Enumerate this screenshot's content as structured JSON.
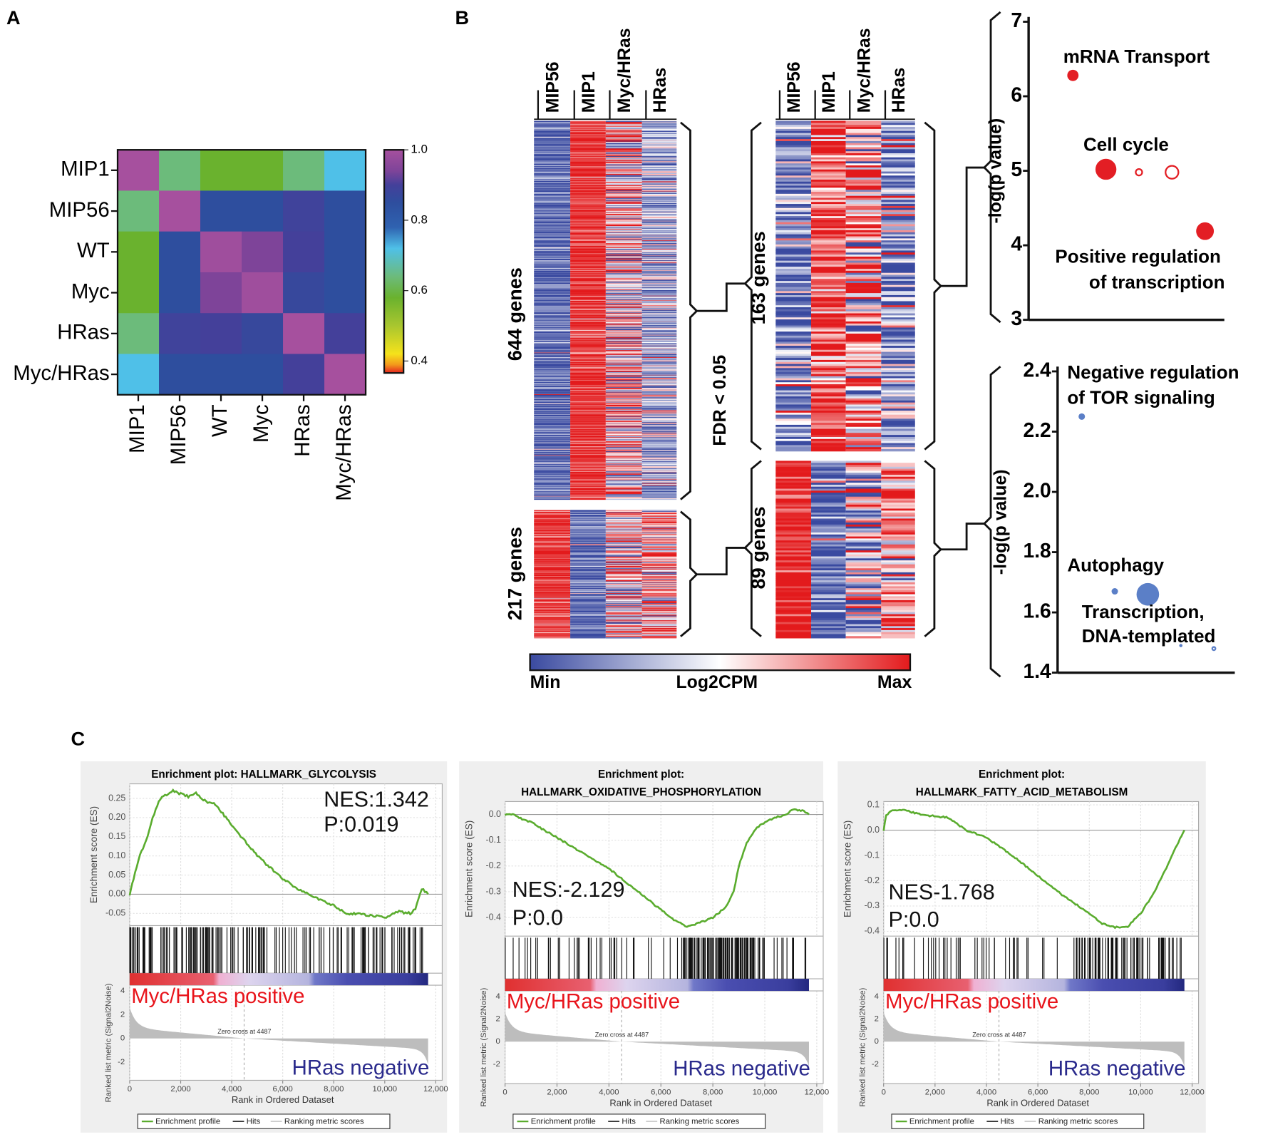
{
  "panel_labels": {
    "a": "A",
    "b": "B",
    "c": "C"
  },
  "chart_data": [
    {
      "id": "A",
      "type": "heatmap",
      "rows": [
        "MIP1",
        "MIP56",
        "WT",
        "Myc",
        "HRas",
        "Myc/HRas"
      ],
      "cols": [
        "MIP1",
        "MIP56",
        "WT",
        "Myc",
        "HRas",
        "Myc/HRas"
      ],
      "values": [
        [
          1.0,
          0.64,
          0.58,
          0.58,
          0.64,
          0.72
        ],
        [
          0.64,
          1.0,
          0.85,
          0.85,
          0.89,
          0.85
        ],
        [
          0.58,
          0.85,
          0.99,
          0.94,
          0.9,
          0.85
        ],
        [
          0.58,
          0.85,
          0.94,
          0.99,
          0.87,
          0.85
        ],
        [
          0.64,
          0.89,
          0.9,
          0.87,
          1.0,
          0.9
        ],
        [
          0.72,
          0.85,
          0.85,
          0.85,
          0.9,
          1.0
        ]
      ],
      "colorbar": {
        "range": [
          0.366,
          1.0
        ],
        "ticks": [
          "1.0",
          "0.8",
          "0.6",
          "0.4"
        ]
      }
    },
    {
      "id": "B-heatmap",
      "type": "heatmap",
      "columns": [
        "MIP56",
        "MIP1",
        "Myc/HRas",
        "HRas"
      ],
      "blocks": [
        {
          "label": "644 genes",
          "genes": 644,
          "side": "left",
          "column_means": [
            -0.85,
            0.9,
            0.1,
            -0.45
          ],
          "spread": [
            0.35,
            0.25,
            0.8,
            0.5
          ]
        },
        {
          "label": "217 genes",
          "genes": 217,
          "side": "left",
          "column_means": [
            0.9,
            -0.85,
            0.15,
            0.3
          ],
          "spread": [
            0.25,
            0.35,
            0.7,
            0.7
          ]
        },
        {
          "label": "163 genes",
          "genes": 163,
          "side": "right",
          "column_means": [
            -0.6,
            0.8,
            0.45,
            -0.55
          ],
          "spread": [
            0.5,
            0.45,
            0.7,
            0.6
          ]
        },
        {
          "label": "89 genes",
          "genes": 89,
          "side": "right",
          "column_means": [
            0.9,
            -0.8,
            -0.1,
            0.5
          ],
          "spread": [
            0.25,
            0.35,
            0.7,
            0.6
          ]
        }
      ],
      "fdr_label": "FDR < 0.05",
      "colorbar": {
        "min": "Min",
        "label": "Log2CPM",
        "max": "Max"
      },
      "colors": {
        "min": "#3a4aa0",
        "mid": "#ffffff",
        "max": "#e31a1c"
      }
    },
    {
      "id": "B-dot-up",
      "type": "scatter",
      "ylabel": "-log(p value)",
      "ylim": [
        3,
        7
      ],
      "yticks": [
        "7",
        "6",
        "5",
        "4",
        "3"
      ],
      "color": "#e31e24",
      "points": [
        {
          "x": 1,
          "y": 6.28,
          "size": 3,
          "filled": true
        },
        {
          "x": 2,
          "y": 5.02,
          "size": 6,
          "filled": true
        },
        {
          "x": 3,
          "y": 4.98,
          "size": 2,
          "filled": false
        },
        {
          "x": 4,
          "y": 4.98,
          "size": 4,
          "filled": false
        },
        {
          "x": 5,
          "y": 4.19,
          "size": 5,
          "filled": true
        }
      ],
      "annotations": [
        "mRNA Transport",
        "Cell cycle",
        "Positive regulation",
        "of transcription"
      ]
    },
    {
      "id": "B-dot-down",
      "type": "scatter",
      "ylabel": "-log(p value)",
      "ylim": [
        1.4,
        2.4
      ],
      "yticks": [
        "2.4",
        "2.2",
        "2.0",
        "1.8",
        "1.6",
        "1.4"
      ],
      "color": "#5b7fc7",
      "points": [
        {
          "x": 1,
          "y": 2.25,
          "size": 1.5,
          "filled": true
        },
        {
          "x": 2,
          "y": 1.67,
          "size": 1.5,
          "filled": true
        },
        {
          "x": 3,
          "y": 1.66,
          "size": 6.5,
          "filled": true
        },
        {
          "x": 4,
          "y": 1.49,
          "size": 0.5,
          "filled": true
        },
        {
          "x": 5,
          "y": 1.48,
          "size": 1,
          "filled": false
        }
      ],
      "annotations": [
        "Negative regulation",
        "of TOR signaling",
        "Autophagy",
        "Transcription,",
        "DNA-templated"
      ]
    },
    {
      "id": "C1",
      "type": "line",
      "title": [
        "Enrichment plot: HALLMARK_GLYCOLYSIS"
      ],
      "nes": "NES:1.342",
      "p": "P:0.019",
      "ylabel": "Enrichment score (ES)",
      "ylabel2": "Ranked list metric (Signal2Noise)",
      "xlabel": "Rank in Ordered Dataset",
      "ylim": [
        -0.082,
        0.288
      ],
      "yticks": [
        "0.25",
        "0.20",
        "0.15",
        "0.10",
        "0.05",
        "0.00",
        "-0.05"
      ],
      "metric_ticks": [
        "4",
        "2",
        "0",
        "-2"
      ],
      "xticks": [
        "0",
        "2,000",
        "4,000",
        "6,000",
        "8,000",
        "10,000",
        "12,000"
      ],
      "zero_cross": "Zero cross at 4487",
      "zero_cross_rank": 4487,
      "n_genes": 11700,
      "positive_label": "Myc/HRas positive",
      "negative_label": "HRas negative",
      "legend": [
        "Enrichment profile",
        "Hits",
        "Ranking metric scores"
      ],
      "es_curve": [
        [
          0,
          0
        ],
        [
          150,
          0.04
        ],
        [
          400,
          0.1
        ],
        [
          700,
          0.15
        ],
        [
          900,
          0.2
        ],
        [
          1200,
          0.25
        ],
        [
          1700,
          0.27
        ],
        [
          2000,
          0.262
        ],
        [
          2300,
          0.255
        ],
        [
          2600,
          0.265
        ],
        [
          3000,
          0.24
        ],
        [
          3300,
          0.24
        ],
        [
          4000,
          0.18
        ],
        [
          5000,
          0.1
        ],
        [
          6000,
          0.04
        ],
        [
          6700,
          0.01
        ],
        [
          7000,
          0.0
        ],
        [
          8000,
          -0.03
        ],
        [
          8500,
          -0.05
        ],
        [
          9500,
          -0.055
        ],
        [
          10000,
          -0.062
        ],
        [
          10500,
          -0.045
        ],
        [
          11000,
          -0.05
        ],
        [
          11200,
          -0.04
        ],
        [
          11450,
          0.015
        ],
        [
          11700,
          0.0
        ]
      ],
      "hits_profile": [
        [
          0,
          3500,
          70
        ],
        [
          3500,
          7500,
          45
        ],
        [
          7500,
          11500,
          55
        ]
      ]
    },
    {
      "id": "C2",
      "type": "line",
      "title": [
        "Enrichment plot:",
        "HALLMARK_OXIDATIVE_PHOSPHORYLATION"
      ],
      "nes": "NES:-2.129",
      "p": "P:0.0",
      "ylabel": "Enrichment score (ES)",
      "ylabel2": "Ranked list metric (Signal2Noise)",
      "xlabel": "Rank in Ordered Dataset",
      "ylim": [
        -0.472,
        0.05
      ],
      "yticks": [
        "0.0",
        "-0.1",
        "-0.2",
        "-0.3",
        "-0.4"
      ],
      "metric_ticks": [
        "4",
        "2",
        "0",
        "-2"
      ],
      "xticks": [
        "0",
        "2,000",
        "4,000",
        "6,000",
        "8,000",
        "10,000",
        "12,000"
      ],
      "zero_cross": "Zero cross at 4487",
      "zero_cross_rank": 4487,
      "n_genes": 11700,
      "positive_label": "Myc/HRas positive",
      "negative_label": "HRas negative",
      "legend": [
        "Enrichment profile",
        "Hits",
        "Ranking metric scores"
      ],
      "es_curve": [
        [
          0,
          0
        ],
        [
          300,
          0.0
        ],
        [
          600,
          -0.015
        ],
        [
          1000,
          -0.03
        ],
        [
          2000,
          -0.09
        ],
        [
          3000,
          -0.15
        ],
        [
          4000,
          -0.21
        ],
        [
          5000,
          -0.29
        ],
        [
          6000,
          -0.37
        ],
        [
          6500,
          -0.41
        ],
        [
          7000,
          -0.435
        ],
        [
          7500,
          -0.42
        ],
        [
          8000,
          -0.4
        ],
        [
          8500,
          -0.36
        ],
        [
          8800,
          -0.3
        ],
        [
          9000,
          -0.2
        ],
        [
          9300,
          -0.11
        ],
        [
          9700,
          -0.05
        ],
        [
          10200,
          -0.02
        ],
        [
          10800,
          0.0
        ],
        [
          11100,
          0.02
        ],
        [
          11500,
          0.015
        ],
        [
          11700,
          0.0
        ]
      ],
      "hits_profile": [
        [
          0,
          6800,
          40
        ],
        [
          6800,
          9600,
          110
        ],
        [
          9600,
          11700,
          18
        ]
      ]
    },
    {
      "id": "C3",
      "type": "line",
      "title": [
        "Enrichment plot:",
        "HALLMARK_FATTY_ACID_METABOLISM"
      ],
      "nes": "NES-1.768",
      "p": "P:0.0",
      "ylabel": "Enrichment score (ES)",
      "ylabel2": "Ranked list metric (Signal2Noise)",
      "xlabel": "Rank in Ordered Dataset",
      "ylim": [
        -0.419,
        0.113
      ],
      "yticks": [
        "0.1",
        "0.0",
        "-0.1",
        "-0.2",
        "-0.3",
        "-0.4"
      ],
      "metric_ticks": [
        "4",
        "2",
        "0",
        "-2"
      ],
      "xticks": [
        "0",
        "2,000",
        "4,000",
        "6,000",
        "8,000",
        "10,000",
        "12,000"
      ],
      "zero_cross": "Zero cross at 4487",
      "zero_cross_rank": 4487,
      "n_genes": 11700,
      "positive_label": "Myc/HRas positive",
      "negative_label": "HRas negative",
      "legend": [
        "Enrichment profile",
        "Hits",
        "Ranking metric scores"
      ],
      "es_curve": [
        [
          0,
          0
        ],
        [
          100,
          0.06
        ],
        [
          400,
          0.08
        ],
        [
          800,
          0.08
        ],
        [
          1500,
          0.06
        ],
        [
          2500,
          0.05
        ],
        [
          3200,
          0.0
        ],
        [
          4000,
          -0.03
        ],
        [
          5000,
          -0.1
        ],
        [
          6000,
          -0.18
        ],
        [
          7000,
          -0.26
        ],
        [
          8000,
          -0.33
        ],
        [
          8500,
          -0.37
        ],
        [
          9000,
          -0.385
        ],
        [
          9500,
          -0.38
        ],
        [
          10000,
          -0.33
        ],
        [
          10500,
          -0.25
        ],
        [
          11000,
          -0.15
        ],
        [
          11300,
          -0.08
        ],
        [
          11700,
          0.0
        ]
      ],
      "hits_profile": [
        [
          0,
          7500,
          45
        ],
        [
          7500,
          11200,
          70
        ],
        [
          11200,
          11600,
          5
        ]
      ]
    }
  ]
}
